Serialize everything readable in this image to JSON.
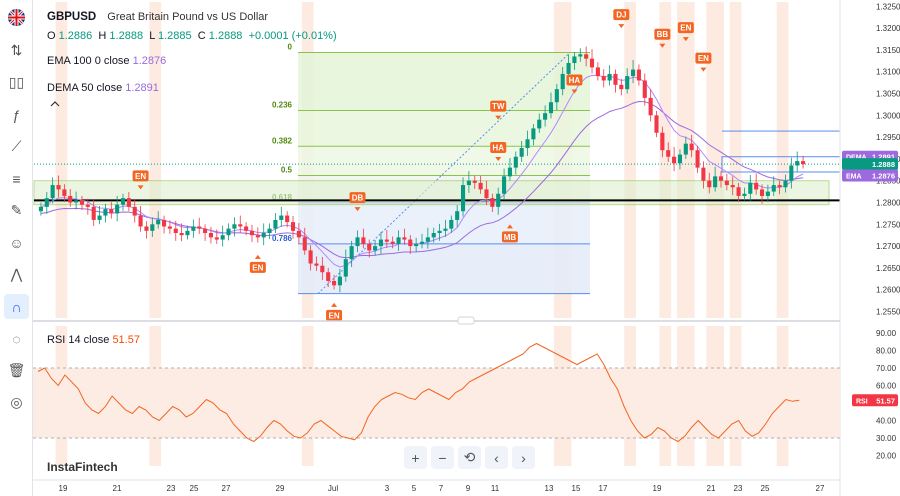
{
  "toolbar": {
    "icons": [
      "flag-gb-icon",
      "ruler-icon",
      "candle-type-icon",
      "indicator-fx-icon",
      "trend-line-icon",
      "fibonacci-icon",
      "brush-icon",
      "emoji-icon",
      "patterns-icon",
      "magnet-icon",
      "eye-off-icon",
      "trash-icon",
      "camera-icon"
    ]
  },
  "legend": {
    "symbol": "GBPUSD",
    "description": "Great Britain Pound vs US Dollar",
    "o_label": "O",
    "o": "1.2886",
    "h_label": "H",
    "h": "1.2888",
    "l_label": "L",
    "l": "1.2885",
    "c_label": "C",
    "c": "1.2888",
    "change": "+0.0001 (+0.01%)",
    "ema": "EMA 100 0 close",
    "ema_value": "1.2876",
    "dema": "DEMA 50 close",
    "dema_value": "1.2891"
  },
  "rsi_legend": {
    "label": "RSI 14 close",
    "value": "51.57"
  },
  "watermark": "InstaFintech",
  "nav": {
    "zoom_in": "+",
    "zoom_out": "−",
    "reset": "⟲",
    "left": "‹",
    "right": "›"
  },
  "colors": {
    "up": "#089981",
    "down": "#f23645",
    "ema": "#9c6ade",
    "dema": "#9c6ade",
    "rsi": "#f26522",
    "badge": "#f26522",
    "fib_green": "#8bc34a",
    "fib_blue": "#5b8def"
  },
  "chart_data": [
    {
      "type": "candlestick",
      "title": "GBPUSD",
      "price_axis": [
        "1.3250",
        "1.3200",
        "1.3150",
        "1.3100",
        "1.3050",
        "1.3000",
        "1.2950",
        "1.2900",
        "1.2850",
        "1.2800",
        "1.2750",
        "1.2700",
        "1.2650",
        "1.2600",
        "1.2550"
      ],
      "ylim": [
        1.2535,
        1.326
      ],
      "x_labels": [
        "19",
        "21",
        "23",
        "25",
        "27",
        "29",
        "Jul",
        "3",
        "5",
        "7",
        "9",
        "11",
        "13",
        "15",
        "17",
        "19",
        "21",
        "23",
        "25",
        "27"
      ],
      "current_price_tag": "1.2888",
      "dema_tag": {
        "label": "DEMA",
        "value": "1.2891"
      },
      "ema_tag": {
        "label": "EMA",
        "value": "1.2876"
      },
      "fibonacci": {
        "levels": [
          {
            "label": "0",
            "price": 1.3144
          },
          {
            "label": "0.236",
            "price": 1.3011
          },
          {
            "label": "0.382",
            "price": 1.2929
          },
          {
            "label": "0.5",
            "price": 1.2862
          },
          {
            "label": "0.618",
            "price": 1.2799
          },
          {
            "label": "0.786",
            "price": 1.2705
          },
          {
            "label": "",
            "price": 1.2591
          }
        ]
      },
      "signals": [
        {
          "label": "EN",
          "dir": "down"
        },
        {
          "label": "EN",
          "dir": "up"
        },
        {
          "label": "EN",
          "dir": "up"
        },
        {
          "label": "DB",
          "dir": "down"
        },
        {
          "label": "TW",
          "dir": "down"
        },
        {
          "label": "HA",
          "dir": "down"
        },
        {
          "label": "MB",
          "dir": "up"
        },
        {
          "label": "HA",
          "dir": "down"
        },
        {
          "label": "DJ",
          "dir": "down"
        },
        {
          "label": "BB",
          "dir": "down"
        },
        {
          "label": "EN",
          "dir": "down"
        },
        {
          "label": "EN",
          "dir": "down"
        }
      ],
      "candles_close": [
        1.279,
        1.281,
        1.284,
        1.283,
        1.2815,
        1.28,
        1.2805,
        1.2795,
        1.279,
        1.276,
        1.277,
        1.2785,
        1.2775,
        1.2795,
        1.281,
        1.279,
        1.277,
        1.2745,
        1.2735,
        1.275,
        1.276,
        1.2745,
        1.274,
        1.273,
        1.2725,
        1.2735,
        1.2745,
        1.274,
        1.273,
        1.272,
        1.2715,
        1.2725,
        1.274,
        1.275,
        1.2745,
        1.2735,
        1.2725,
        1.272,
        1.273,
        1.274,
        1.276,
        1.277,
        1.2755,
        1.2735,
        1.272,
        1.269,
        1.266,
        1.2655,
        1.264,
        1.262,
        1.261,
        1.263,
        1.267,
        1.27,
        1.272,
        1.2705,
        1.269,
        1.27,
        1.2715,
        1.271,
        1.2705,
        1.272,
        1.2715,
        1.27,
        1.2705,
        1.271,
        1.272,
        1.273,
        1.2735,
        1.274,
        1.276,
        1.278,
        1.284,
        1.285,
        1.2845,
        1.283,
        1.281,
        1.279,
        1.282,
        1.286,
        1.288,
        1.2905,
        1.2925,
        1.2945,
        1.297,
        1.299,
        1.3005,
        1.303,
        1.306,
        1.3095,
        1.312,
        1.3135,
        1.314,
        1.313,
        1.311,
        1.309,
        1.308,
        1.3095,
        1.307,
        1.306,
        1.309,
        1.3105,
        1.308,
        1.304,
        1.3,
        1.296,
        1.292,
        1.2905,
        1.289,
        1.291,
        1.2935,
        1.292,
        1.288,
        1.285,
        1.2835,
        1.286,
        1.285,
        1.284,
        1.2835,
        1.2815,
        1.282,
        1.2845,
        1.283,
        1.2815,
        1.2825,
        1.284,
        1.2835,
        1.285,
        1.2885,
        1.2895,
        1.2888
      ]
    },
    {
      "type": "line",
      "title": "RSI",
      "y_axis": [
        "90.00",
        "80.00",
        "70.00",
        "60.00",
        "50.00",
        "40.00",
        "30.00",
        "20.00"
      ],
      "ylim": [
        14,
        94
      ],
      "bands": [
        30,
        70
      ],
      "current_value_tag": {
        "label": "RSI",
        "value": "51.57"
      },
      "values": [
        68,
        70,
        64,
        60,
        66,
        62,
        58,
        50,
        46,
        44,
        48,
        54,
        50,
        46,
        44,
        48,
        46,
        42,
        40,
        44,
        48,
        46,
        42,
        44,
        48,
        52,
        50,
        46,
        44,
        38,
        34,
        30,
        28,
        31,
        36,
        40,
        38,
        34,
        31,
        30,
        33,
        38,
        40,
        37,
        34,
        31,
        30,
        29,
        33,
        42,
        48,
        52,
        54,
        56,
        55,
        53,
        52,
        56,
        58,
        56,
        54,
        52,
        56,
        58,
        62,
        64,
        66,
        68,
        70,
        72,
        74,
        76,
        78,
        82,
        84,
        82,
        80,
        78,
        76,
        74,
        72,
        74,
        76,
        78,
        72,
        64,
        58,
        48,
        40,
        34,
        30,
        32,
        36,
        34,
        30,
        28,
        31,
        36,
        40,
        36,
        32,
        30,
        34,
        38,
        40,
        34,
        31,
        33,
        38,
        44,
        48,
        52,
        51,
        51.57
      ]
    }
  ]
}
